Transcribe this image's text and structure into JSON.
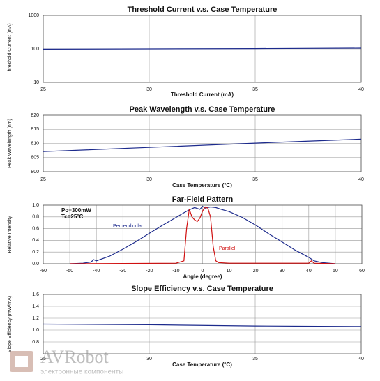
{
  "watermark": {
    "brand": "AVRobot",
    "tagline": "электронные компоненты"
  },
  "chart_data": [
    {
      "type": "line",
      "title": "Threshold Current v.s. Case Temperature",
      "xlabel": "Threshold Current (mA)",
      "ylabel": "Threshold Current (mA)",
      "log": true,
      "grid": true,
      "color": "#1c2a8c",
      "x": [
        25,
        30,
        35,
        40
      ],
      "values": [
        98,
        100,
        102,
        105
      ],
      "xlim": [
        25,
        40
      ],
      "xticks": [
        25,
        30,
        35,
        40
      ],
      "ylim": [
        10,
        1000
      ],
      "yticks": [
        10,
        100,
        1000
      ]
    },
    {
      "type": "line",
      "title": "Peak Wavelength v.s. Case Temperature",
      "xlabel": "Case Temperature (°C)",
      "ylabel": "Peak Wavelength (nm)",
      "log": false,
      "grid": true,
      "color": "#1c2a8c",
      "x": [
        25,
        30,
        35,
        40
      ],
      "values": [
        807.1,
        808.6,
        810.1,
        811.5
      ],
      "xlim": [
        25,
        40
      ],
      "xticks": [
        25,
        30,
        35,
        40
      ],
      "ylim": [
        800,
        820
      ],
      "yticks": [
        800,
        805,
        810,
        815,
        820
      ]
    },
    {
      "type": "line",
      "title": "Far-Field Pattern",
      "xlabel": "Angle (degree)",
      "ylabel": "Relative Intensity",
      "log": false,
      "grid": true,
      "annotations": [
        "Po=300mW",
        "Tc=25°C"
      ],
      "series": [
        {
          "name": "Perpendicular",
          "color": "#1c2a8c",
          "x": [
            -50,
            -45,
            -42,
            -41,
            -40,
            -35,
            -30,
            -25,
            -20,
            -15,
            -10,
            -7,
            -5,
            -3,
            -1,
            0,
            1,
            3,
            5,
            7,
            10,
            15,
            20,
            25,
            30,
            35,
            40,
            41,
            42,
            45,
            50
          ],
          "values": [
            0,
            0.01,
            0.03,
            0.07,
            0.05,
            0.13,
            0.25,
            0.38,
            0.52,
            0.66,
            0.79,
            0.87,
            0.92,
            0.96,
            0.93,
            0.98,
            0.95,
            0.97,
            0.96,
            0.93,
            0.89,
            0.79,
            0.66,
            0.51,
            0.37,
            0.23,
            0.11,
            0.08,
            0.05,
            0.02,
            0
          ]
        },
        {
          "name": "Parallel",
          "color": "#d01010",
          "x": [
            -50,
            -10,
            -7,
            -6,
            -5,
            -4,
            -3,
            -2,
            -1,
            0,
            1,
            2,
            3,
            4,
            5,
            6,
            10,
            40,
            41,
            42,
            50
          ],
          "values": [
            0,
            0.01,
            0.05,
            0.6,
            0.93,
            0.8,
            0.75,
            0.72,
            0.78,
            0.9,
            0.97,
            0.95,
            0.8,
            0.3,
            0.05,
            0.02,
            0.01,
            0.01,
            0.05,
            0.01,
            0
          ]
        }
      ],
      "xlim": [
        -60,
        60
      ],
      "xticks": [
        -60,
        -50,
        -40,
        -30,
        -20,
        -10,
        0,
        10,
        20,
        30,
        40,
        50,
        60
      ],
      "ylim": [
        0,
        1
      ],
      "yticks": [
        {
          "value": 0,
          "label": "0.0"
        },
        0.2,
        0.4,
        0.6,
        0.8,
        {
          "value": 1,
          "label": "1.0"
        }
      ]
    },
    {
      "type": "line",
      "title": "Slope Efficiency v.s. Case Temperature",
      "xlabel": "Case Temperature (°C)",
      "ylabel": "Slope Efficiency (mW/mA)",
      "log": false,
      "grid": true,
      "color": "#1c2a8c",
      "x": [
        25,
        30,
        35,
        40
      ],
      "values": [
        1.1,
        1.09,
        1.07,
        1.06
      ],
      "xlim": [
        25,
        40
      ],
      "xticks": [
        25,
        30,
        35,
        40
      ],
      "ylim": [
        0.6,
        1.6
      ],
      "yticks": [
        0.8,
        {
          "value": 1,
          "label": "1.0"
        },
        1.2,
        1.4,
        1.6
      ]
    }
  ]
}
